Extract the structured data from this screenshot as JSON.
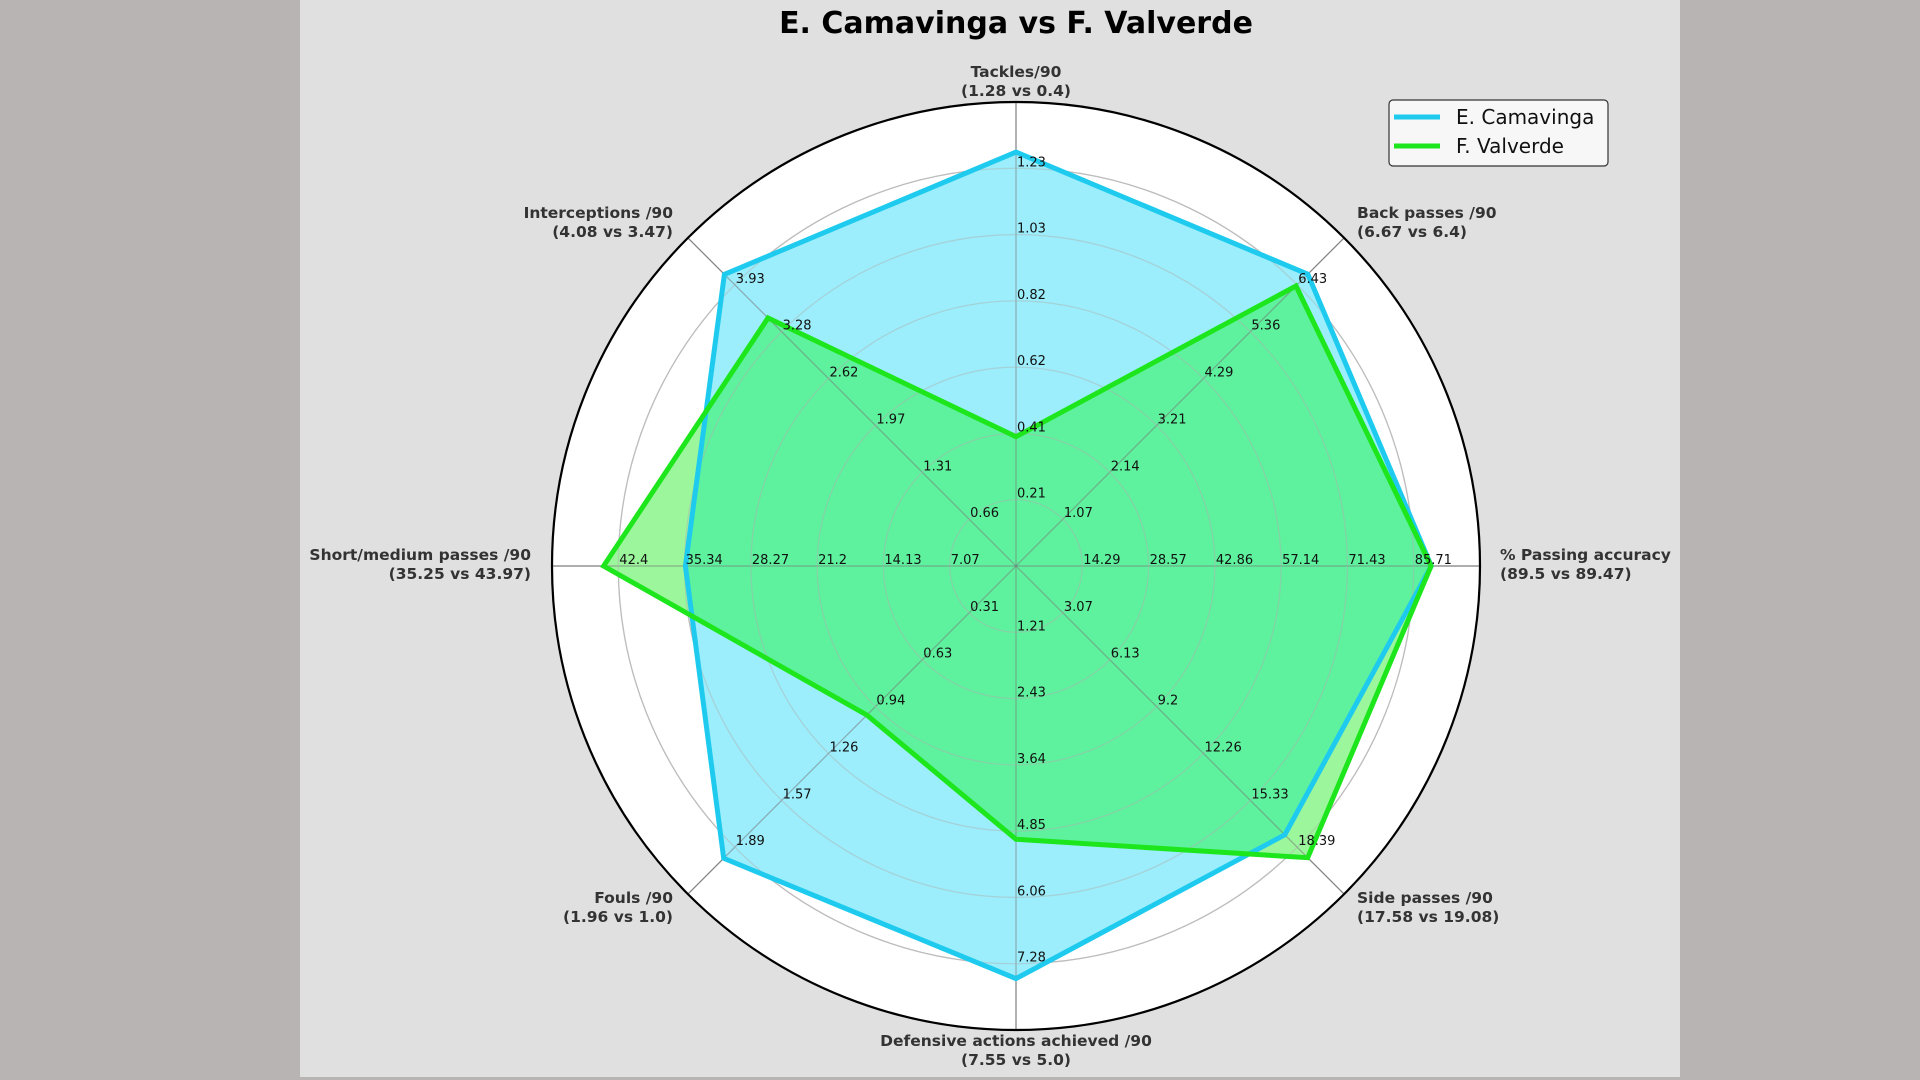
{
  "chart_data": {
    "type": "radar",
    "title": "E. Camavinga vs F. Valverde",
    "legend": {
      "position": "upper right",
      "entries": [
        {
          "name": "E. Camavinga",
          "color": "#1ecbee"
        },
        {
          "name": "F. Valverde",
          "color": "#1de61d"
        }
      ]
    },
    "colors": {
      "camavinga_line": "#1ecbee",
      "camavinga_fill": "#9ceefc",
      "valverde_line": "#1de61d",
      "valverde_fill": "#9cf79c",
      "overlap_fill": "#5ef29e",
      "background": "#e0e0e0",
      "outer_background": "#b8b4b4"
    },
    "grid": true,
    "rings": 7,
    "axes": [
      {
        "label": "Tackles/90",
        "values_label": "(1.28 vs 0.4)",
        "max": 1.435,
        "ticks": [
          "0.21",
          "0.41",
          "0.62",
          "0.82",
          "1.03",
          "1.23"
        ]
      },
      {
        "label": "Back passes /90",
        "values_label": "(6.67 vs 6.4)",
        "max": 7.5,
        "ticks": [
          "1.07",
          "2.14",
          "3.21",
          "4.29",
          "5.36",
          "6.43"
        ]
      },
      {
        "label": "% Passing accuracy",
        "values_label": "(89.5 vs 89.47)",
        "max": 100,
        "ticks": [
          "14.29",
          "28.57",
          "42.86",
          "57.14",
          "71.43",
          "85.71"
        ]
      },
      {
        "label": "Side passes /90",
        "values_label": "(17.58 vs 19.08)",
        "max": 21.46,
        "ticks": [
          "3.07",
          "6.13",
          "9.2",
          "12.26",
          "15.33",
          "18.39"
        ]
      },
      {
        "label": "Defensive actions achieved /90",
        "values_label": "(7.55 vs 5.0)",
        "max": 8.49,
        "ticks": [
          "1.21",
          "2.43",
          "3.64",
          "4.85",
          "6.06",
          "7.28"
        ]
      },
      {
        "label": "Fouls /90",
        "values_label": "(1.96 vs 1.0)",
        "max": 2.2,
        "ticks": [
          "0.31",
          "0.63",
          "0.94",
          "1.26",
          "1.57",
          "1.89"
        ]
      },
      {
        "label": "Short/medium passes /90",
        "values_label": "(35.25 vs 43.97)",
        "max": 49.47,
        "ticks": [
          "7.07",
          "14.13",
          "21.2",
          "28.27",
          "35.34",
          "42.4"
        ]
      },
      {
        "label": "Interceptions /90",
        "values_label": "(4.08 vs 3.47)",
        "max": 4.59,
        "ticks": [
          "0.66",
          "1.31",
          "1.97",
          "2.62",
          "3.28",
          "3.93"
        ]
      }
    ],
    "categories": [
      "Tackles/90",
      "Back passes /90",
      "% Passing accuracy",
      "Side passes /90",
      "Defensive actions achieved /90",
      "Fouls /90",
      "Short/medium passes /90",
      "Interceptions /90"
    ],
    "series": [
      {
        "name": "E. Camavinga",
        "values": [
          1.28,
          6.67,
          89.5,
          17.58,
          7.55,
          1.96,
          35.25,
          4.08
        ]
      },
      {
        "name": "F. Valverde",
        "values": [
          0.4,
          6.4,
          89.47,
          19.08,
          5.0,
          1.0,
          43.97,
          3.47
        ]
      }
    ]
  }
}
